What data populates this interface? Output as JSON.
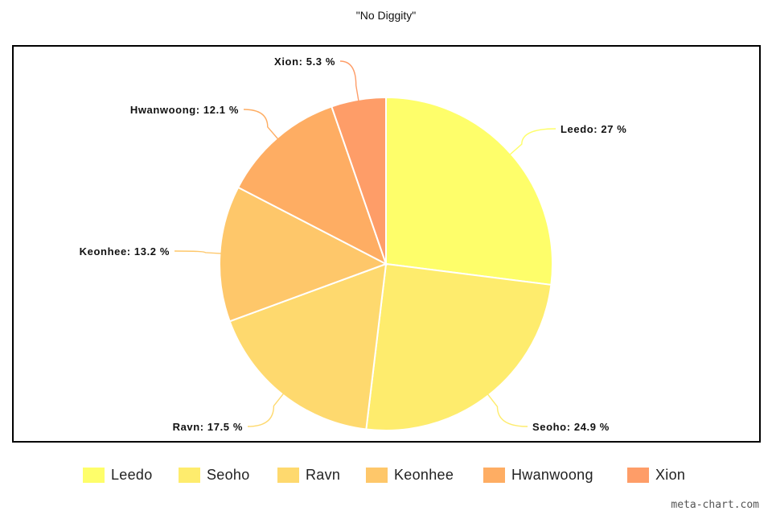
{
  "chart_data": {
    "type": "pie",
    "title": "\"No Diggity\"",
    "unit": "%",
    "slices": [
      {
        "name": "Leedo",
        "value": 27,
        "label": "Leedo: 27 %",
        "color": "#FEFE6A"
      },
      {
        "name": "Seoho",
        "value": 24.9,
        "label": "Seoho: 24.9 %",
        "color": "#FEEC6D"
      },
      {
        "name": "Ravn",
        "value": 17.5,
        "label": "Ravn: 17.5 %",
        "color": "#FED96E"
      },
      {
        "name": "Keonhee",
        "value": 13.2,
        "label": "Keonhee: 13.2 %",
        "color": "#FEC76A"
      },
      {
        "name": "Hwanwoong",
        "value": 12.1,
        "label": "Hwanwoong: 12.1 %",
        "color": "#FEAD63"
      },
      {
        "name": "Xion",
        "value": 5.3,
        "label": "Xion: 5.3 %",
        "color": "#FE9D68"
      }
    ],
    "legend_position": "bottom",
    "start_angle": "12 o'clock",
    "direction": "clockwise"
  },
  "watermark": "meta-chart.com"
}
